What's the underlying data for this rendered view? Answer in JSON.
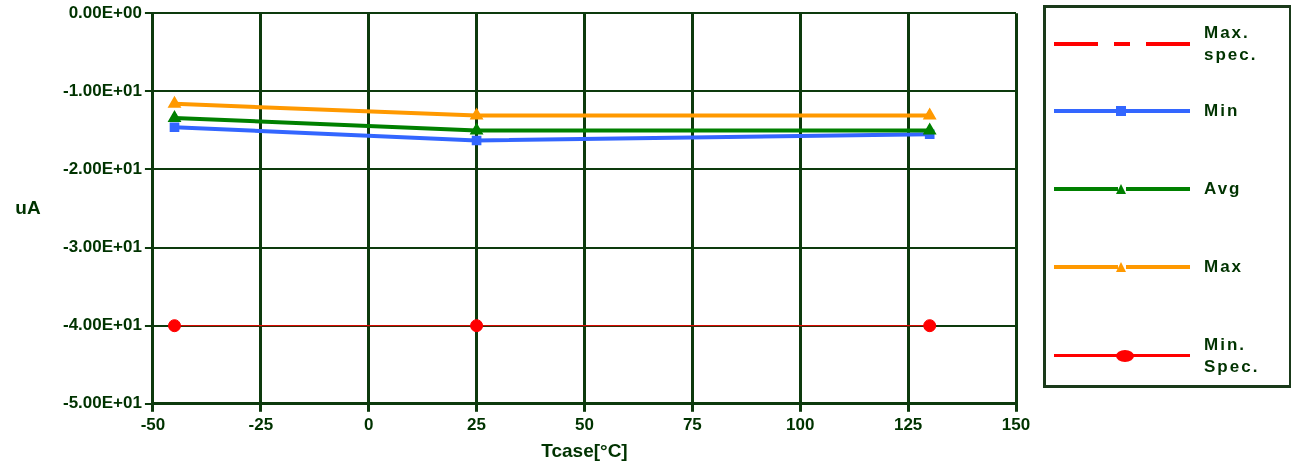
{
  "chart_data": {
    "type": "line",
    "xlabel": "Tcase[°C]",
    "ylabel": "uA",
    "x": [
      -45,
      25,
      130
    ],
    "series": [
      {
        "name": "Max. spec.",
        "color": "#ff0000",
        "values": [
          null,
          null,
          null
        ],
        "line_style": "dashed",
        "marker": "none"
      },
      {
        "name": "Min",
        "color": "#3366ff",
        "values": [
          -14.6,
          -16.3,
          -15.5
        ],
        "marker": "square"
      },
      {
        "name": "Avg",
        "color": "#008000",
        "values": [
          -13.4,
          -15.0,
          -15.0
        ],
        "marker": "triangle"
      },
      {
        "name": "Max",
        "color": "#ff9900",
        "values": [
          -11.6,
          -13.1,
          -13.1
        ],
        "marker": "triangle"
      },
      {
        "name": "Min. Spec.",
        "color": "#ff0000",
        "values": [
          -40,
          -40,
          -40
        ],
        "marker": "circle"
      }
    ],
    "xlim": [
      -50,
      150
    ],
    "xticks": [
      -50,
      -25,
      0,
      25,
      50,
      75,
      100,
      125,
      150
    ],
    "ylim": [
      -50,
      0
    ],
    "yticks": [
      {
        "value": -50,
        "label": "-5.00E+01"
      },
      {
        "value": -40,
        "label": "-4.00E+01"
      },
      {
        "value": -30,
        "label": "-3.00E+01"
      },
      {
        "value": -20,
        "label": "-2.00E+01"
      },
      {
        "value": -10,
        "label": "-1.00E+01"
      },
      {
        "value": 0,
        "label": "0.00E+00"
      }
    ],
    "grid": true,
    "legend": "right"
  }
}
